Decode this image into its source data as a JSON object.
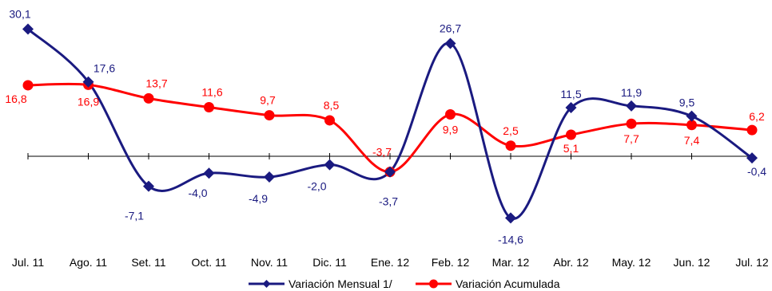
{
  "chart_data": {
    "type": "line",
    "title": "",
    "xlabel": "",
    "ylabel": "",
    "categories": [
      "Jul. 11",
      "Ago. 11",
      "Set. 11",
      "Oct. 11",
      "Nov. 11",
      "Dic. 11",
      "Ene. 12",
      "Feb. 12",
      "Mar. 12",
      "Abr. 12",
      "May. 12",
      "Jun. 12",
      "Jul. 12"
    ],
    "ylim": [
      -20,
      35
    ],
    "grid": false,
    "legend_position": "bottom",
    "series": [
      {
        "name": "Variación Mensual 1/",
        "color": "#1a1a80",
        "marker": "diamond",
        "smooth": true,
        "values": [
          30.1,
          17.6,
          -7.1,
          -4.0,
          -4.9,
          -2.0,
          -3.7,
          26.7,
          -14.6,
          11.5,
          11.9,
          9.5,
          -0.4
        ],
        "labels": [
          "30,1",
          "17,6",
          "-7,1",
          "-4,0",
          "-4,9",
          "-2,0",
          "-3,7",
          "26,7",
          "-14,6",
          "11,5",
          "11,9",
          "9,5",
          "-0,4"
        ]
      },
      {
        "name": "Variación Acumulada",
        "color": "#ff0000",
        "marker": "circle",
        "smooth": true,
        "values": [
          16.8,
          16.9,
          13.7,
          11.6,
          9.7,
          8.5,
          -3.7,
          9.9,
          2.5,
          5.1,
          7.7,
          7.4,
          6.2
        ],
        "labels": [
          "16,8",
          "16,9",
          "13,7",
          "11,6",
          "9,7",
          "8,5",
          "-3,7",
          "9,9",
          "2,5",
          "5,1",
          "7,7",
          "7,4",
          "6,2"
        ]
      }
    ]
  }
}
